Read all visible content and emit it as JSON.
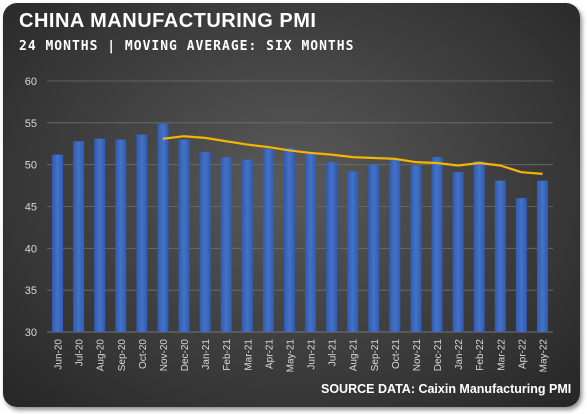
{
  "chart_data": {
    "type": "bar",
    "title": "CHINA MANUFACTURING PMI",
    "subtitle": "24 MONTHS | MOVING AVERAGE: SIX MONTHS",
    "source": "SOURCE DATA: Caixin Manufacturing PMI",
    "categories": [
      "Jun-20",
      "Jul-20",
      "Aug-20",
      "Sep-20",
      "Oct-20",
      "Nov-20",
      "Dec-20",
      "Jan-21",
      "Feb-21",
      "Mar-21",
      "Apr-21",
      "May-21",
      "Jun-21",
      "Jul-21",
      "Aug-21",
      "Sep-21",
      "Oct-21",
      "Nov-21",
      "Dec-21",
      "Jan-22",
      "Feb-22",
      "Mar-22",
      "Apr-22",
      "May-22"
    ],
    "series": [
      {
        "type": "bar",
        "color": "#4472c4",
        "values": [
          51.2,
          52.8,
          53.1,
          53.0,
          53.6,
          54.9,
          53.0,
          51.5,
          50.9,
          50.6,
          51.9,
          52.0,
          51.3,
          50.3,
          49.2,
          50.0,
          50.6,
          49.9,
          50.9,
          49.1,
          50.4,
          48.1,
          46.0,
          48.1
        ]
      },
      {
        "type": "line",
        "color": "#f4b400",
        "values": [
          null,
          null,
          null,
          null,
          null,
          53.1,
          53.4,
          53.2,
          52.8,
          52.4,
          52.1,
          51.7,
          51.4,
          51.2,
          50.9,
          50.8,
          50.7,
          50.3,
          50.2,
          49.9,
          50.2,
          49.9,
          49.1,
          48.9
        ]
      }
    ],
    "ylim": [
      30,
      60
    ],
    "yticks": [
      30,
      35,
      40,
      45,
      50,
      55,
      60
    ],
    "grid": true,
    "legend": "none"
  }
}
